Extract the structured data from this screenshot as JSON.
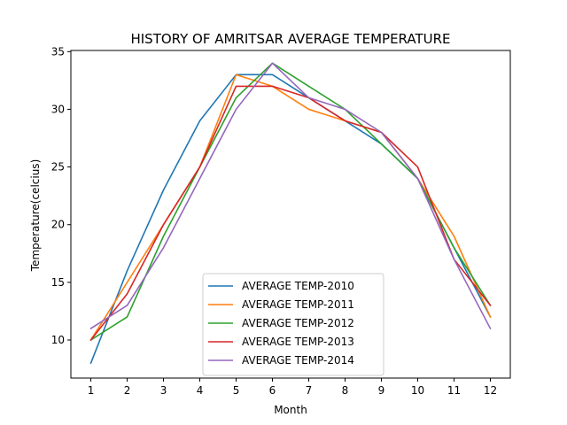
{
  "chart_data": {
    "type": "line",
    "title": "HISTORY OF AMRITSAR AVERAGE TEMPERATURE",
    "xlabel": "Month",
    "ylabel": "Temperature(celcius)",
    "x": [
      1,
      2,
      3,
      4,
      5,
      6,
      7,
      8,
      9,
      10,
      11,
      12
    ],
    "xlim": [
      0.45,
      12.55
    ],
    "ylim": [
      6.7,
      35.1
    ],
    "xticks": [
      1,
      2,
      3,
      4,
      5,
      6,
      7,
      8,
      9,
      10,
      11,
      12
    ],
    "yticks": [
      10,
      15,
      20,
      25,
      30,
      35
    ],
    "grid": false,
    "legend_position": "bottom-center",
    "series": [
      {
        "name": "AVERAGE TEMP-2010",
        "color": "#1f77b4",
        "values": [
          8,
          16,
          23,
          29,
          33,
          33,
          31,
          29,
          27,
          24,
          18,
          12
        ]
      },
      {
        "name": "AVERAGE TEMP-2011",
        "color": "#ff7f0e",
        "values": [
          10,
          15,
          20,
          25,
          33,
          32,
          30,
          29,
          28,
          24,
          19,
          12
        ]
      },
      {
        "name": "AVERAGE TEMP-2012",
        "color": "#2ca02c",
        "values": [
          10,
          12,
          19,
          25,
          31,
          34,
          32,
          30,
          27,
          24,
          18,
          13
        ]
      },
      {
        "name": "AVERAGE TEMP-2013",
        "color": "#d62728",
        "values": [
          10,
          14,
          20,
          25,
          32,
          32,
          31,
          29,
          28,
          25,
          17,
          13
        ]
      },
      {
        "name": "AVERAGE TEMP-2014",
        "color": "#9467bd",
        "values": [
          11,
          13,
          18,
          24,
          30,
          34,
          31,
          30,
          28,
          24,
          17,
          11
        ]
      }
    ]
  }
}
